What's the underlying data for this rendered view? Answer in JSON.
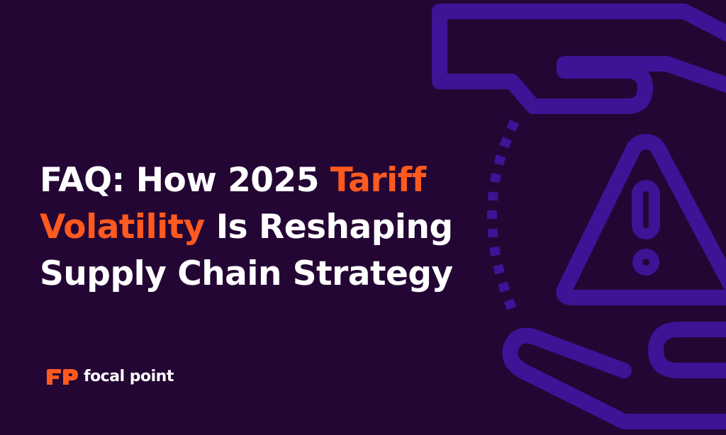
{
  "headline": {
    "line1_prefix": "FAQ: How 2025 ",
    "line1_accent": "Tariff",
    "line2_accent": "Volatility",
    "line2_suffix": " Is Reshaping",
    "line3": "Supply Chain Strategy"
  },
  "brand": {
    "mark_letters": "FP",
    "name": "focal point"
  },
  "illustration": {
    "icon": "hands-holding-warning-triangle-icon"
  },
  "colors": {
    "background": "#240634",
    "accent": "#ff5a1f",
    "icon_stroke": "#3d1496",
    "text": "#ffffff"
  }
}
